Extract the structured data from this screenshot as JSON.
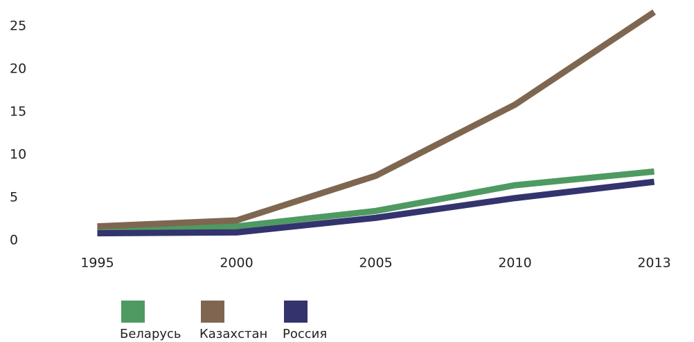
{
  "chart_data": {
    "type": "line",
    "categories": [
      "1995",
      "2000",
      "2005",
      "2010",
      "2013"
    ],
    "series": [
      {
        "name": "Беларусь",
        "color": "#4e9a62",
        "values": [
          1.3,
          1.8,
          3.6,
          6.6,
          8.2
        ]
      },
      {
        "name": "Казахстан",
        "color": "#7f6650",
        "values": [
          1.8,
          2.5,
          7.7,
          16,
          26.8
        ]
      },
      {
        "name": "Россия",
        "color": "#33336e",
        "values": [
          1.0,
          1.1,
          2.8,
          5.1,
          7.0
        ]
      }
    ],
    "ylim": [
      0,
      27
    ],
    "yticks": [
      0,
      5,
      10,
      15,
      20,
      25
    ],
    "grid": false,
    "legend": "bottom"
  }
}
